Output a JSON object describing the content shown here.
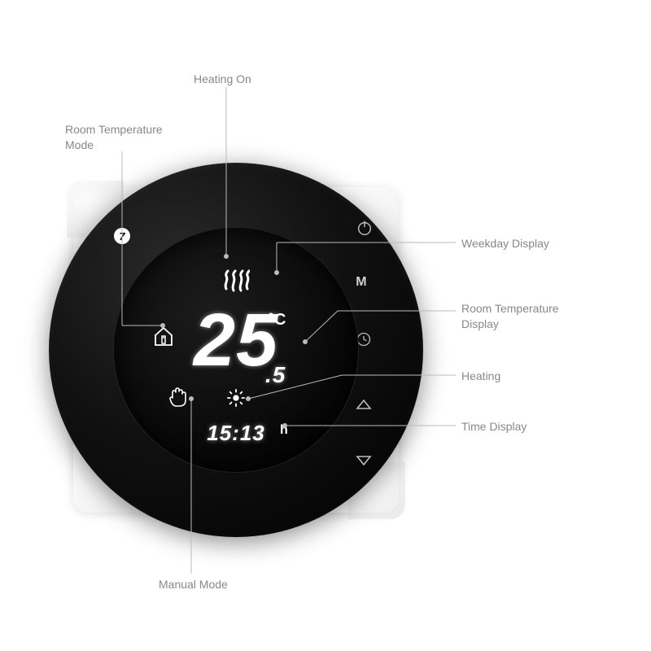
{
  "callouts": {
    "heating_on": "Heating On",
    "room_temp_mode": "Room Temperature\nMode",
    "weekday_display": "Weekday Display",
    "room_temp_display": "Room Temperature\nDisplay",
    "heating": "Heating",
    "time_display": "Time Display",
    "manual_mode": "Manual Mode"
  },
  "display": {
    "temperature_int": "25",
    "temperature_dec": ".5",
    "temperature_unit": "°C",
    "weekday": "7",
    "time": "15:13",
    "time_suffix": "h"
  },
  "buttons": {
    "mode_label": "M"
  },
  "style": {
    "bg": "#ffffff",
    "device_black": "#0a0a0a",
    "lcd_white": "#ffffff",
    "callout_color": "#888888",
    "lead_color": "#bbbbbb",
    "side_btn_color": "#bdbdbd",
    "callout_fontsize": 14,
    "temp_fontsize": 92,
    "time_fontsize": 26
  }
}
